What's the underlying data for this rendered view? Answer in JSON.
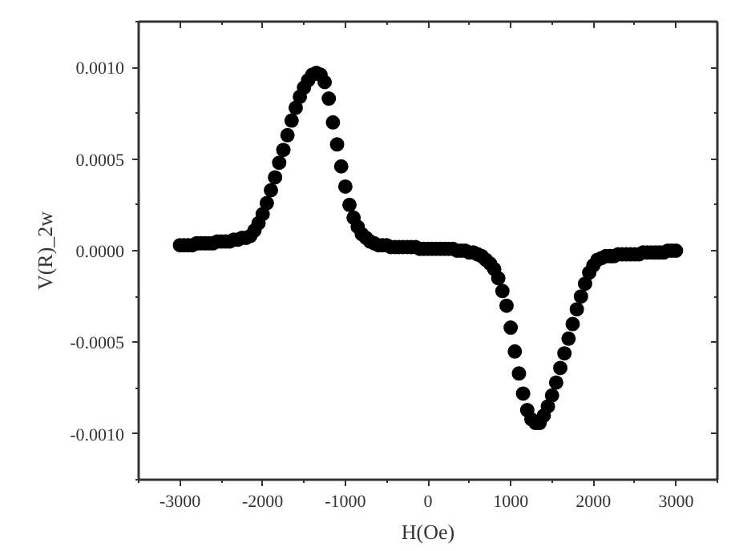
{
  "chart_data": {
    "type": "scatter",
    "xlabel": "H(Oe)",
    "ylabel": "V(R)_2w",
    "x": [
      -3000,
      -2950,
      -2900,
      -2850,
      -2800,
      -2750,
      -2700,
      -2650,
      -2600,
      -2550,
      -2500,
      -2450,
      -2400,
      -2350,
      -2300,
      -2250,
      -2200,
      -2150,
      -2100,
      -2050,
      -2000,
      -1950,
      -1900,
      -1850,
      -1800,
      -1750,
      -1700,
      -1650,
      -1600,
      -1550,
      -1500,
      -1450,
      -1400,
      -1350,
      -1300,
      -1250,
      -1200,
      -1150,
      -1100,
      -1050,
      -1000,
      -950,
      -900,
      -850,
      -800,
      -750,
      -700,
      -650,
      -600,
      -550,
      -500,
      -450,
      -400,
      -350,
      -300,
      -250,
      -200,
      -150,
      -100,
      -50,
      0,
      50,
      100,
      150,
      200,
      250,
      300,
      350,
      400,
      450,
      500,
      550,
      600,
      650,
      700,
      750,
      800,
      850,
      900,
      950,
      1000,
      1050,
      1100,
      1150,
      1200,
      1250,
      1300,
      1350,
      1400,
      1450,
      1500,
      1550,
      1600,
      1650,
      1700,
      1750,
      1800,
      1850,
      1900,
      1950,
      2000,
      2050,
      2100,
      2150,
      2200,
      2250,
      2300,
      2350,
      2400,
      2450,
      2500,
      2550,
      2600,
      2650,
      2700,
      2750,
      2800,
      2850,
      2900,
      2950,
      3000
    ],
    "series": [
      {
        "color": "#000000",
        "values": [
          3e-05,
          3e-05,
          3e-05,
          3e-05,
          4e-05,
          4e-05,
          4e-05,
          4e-05,
          4e-05,
          5e-05,
          5e-05,
          5e-05,
          5e-05,
          6e-05,
          6e-05,
          7e-05,
          7e-05,
          8e-05,
          0.00011,
          0.00015,
          0.0002,
          0.00026,
          0.00033,
          0.0004,
          0.00048,
          0.00055,
          0.00063,
          0.00071,
          0.00078,
          0.00084,
          0.00089,
          0.00093,
          0.00096,
          0.00097,
          0.00096,
          0.00092,
          0.00083,
          0.0007,
          0.00058,
          0.00046,
          0.00035,
          0.00025,
          0.00018,
          0.00013,
          9e-05,
          7e-05,
          5e-05,
          4e-05,
          3e-05,
          3e-05,
          3e-05,
          2e-05,
          2e-05,
          2e-05,
          2e-05,
          2e-05,
          2e-05,
          2e-05,
          1e-05,
          1e-05,
          1e-05,
          1e-05,
          1e-05,
          1e-05,
          1e-05,
          1e-05,
          1e-05,
          0,
          0,
          0,
          -1e-05,
          -1e-05,
          -2e-05,
          -3e-05,
          -5e-05,
          -7e-05,
          -0.0001,
          -0.00015,
          -0.00022,
          -0.0003,
          -0.00042,
          -0.00055,
          -0.00067,
          -0.00078,
          -0.00087,
          -0.00092,
          -0.00094,
          -0.00094,
          -0.0009,
          -0.00085,
          -0.00079,
          -0.00072,
          -0.00064,
          -0.00056,
          -0.00048,
          -0.0004,
          -0.00032,
          -0.00025,
          -0.00018,
          -0.00012,
          -8e-05,
          -5e-05,
          -4e-05,
          -3e-05,
          -3e-05,
          -3e-05,
          -2e-05,
          -2e-05,
          -2e-05,
          -2e-05,
          -2e-05,
          -2e-05,
          -1e-05,
          -1e-05,
          -1e-05,
          -1e-05,
          -1e-05,
          -1e-05,
          0,
          0,
          0
        ]
      }
    ],
    "marker": "circle",
    "grid": false,
    "xlim": [
      -3500,
      3500
    ],
    "xticks": [
      -3000,
      -2000,
      -1000,
      0,
      1000,
      2000,
      3000
    ],
    "ylim": [
      -0.00125,
      0.00125
    ],
    "yticks": [
      {
        "value": -0.001,
        "label": "-0.0010"
      },
      {
        "value": -0.0005,
        "label": "-0.0005"
      },
      {
        "value": 0,
        "label": "0.0000"
      },
      {
        "value": 0.0005,
        "label": "0.0005"
      },
      {
        "value": 0.001,
        "label": "0.0010"
      }
    ]
  }
}
